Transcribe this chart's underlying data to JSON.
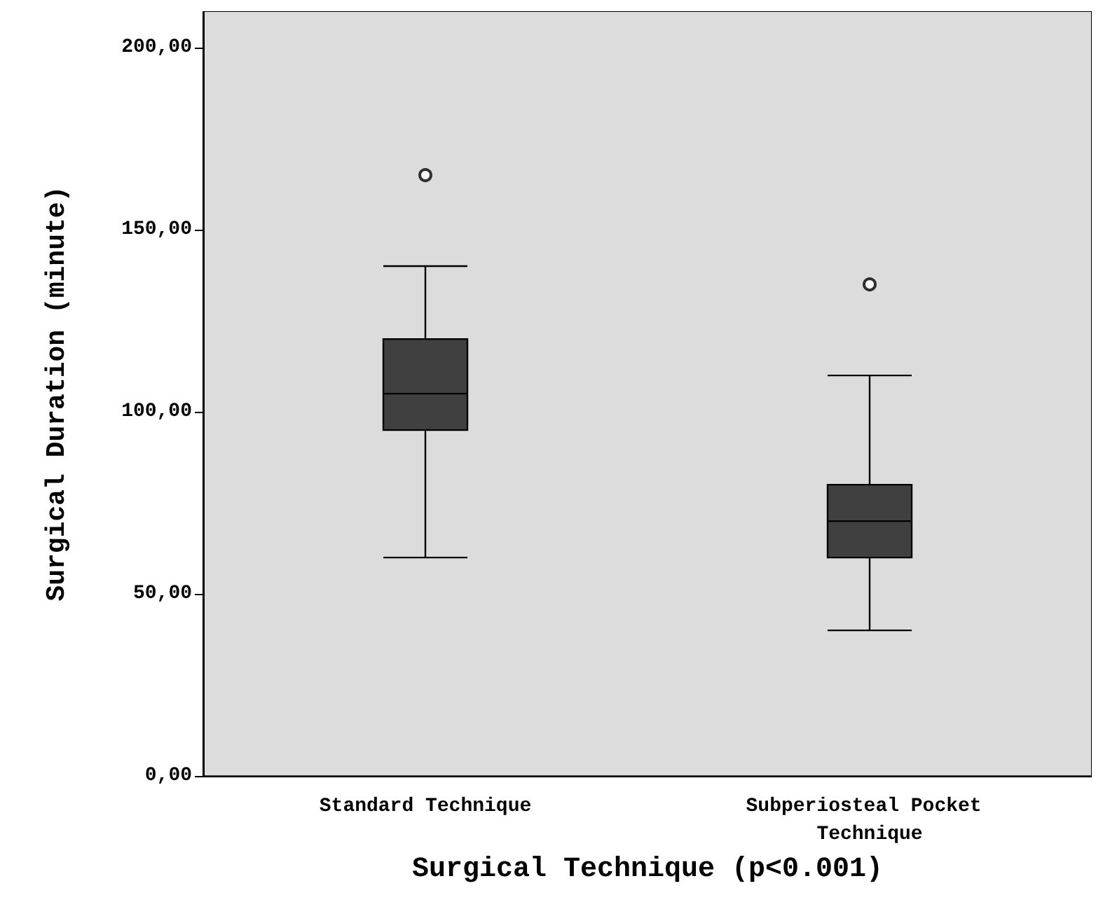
{
  "chart_data": {
    "type": "box",
    "xlabel": "Surgical Technique (p<0.001)",
    "ylabel": "Surgical Duration (minute)",
    "categories": [
      "Standard Technique",
      "Subperiosteal Pocket Technique"
    ],
    "series": [
      {
        "color": "#404040",
        "boxes": [
          {
            "low": 60,
            "q1": 95,
            "median": 105,
            "q3": 120,
            "high": 140,
            "outliers": [
              165
            ]
          },
          {
            "low": 40,
            "q1": 60,
            "median": 70,
            "q3": 80,
            "high": 110,
            "outliers": [
              135
            ]
          }
        ]
      }
    ],
    "ylim": [
      0,
      210
    ],
    "yticks": [
      {
        "value": 0,
        "label": "0,00"
      },
      {
        "value": 50,
        "label": "50,00"
      },
      {
        "value": 100,
        "label": "100,00"
      },
      {
        "value": 150,
        "label": "150,00"
      },
      {
        "value": 200,
        "label": "200,00"
      }
    ],
    "grid": false
  }
}
